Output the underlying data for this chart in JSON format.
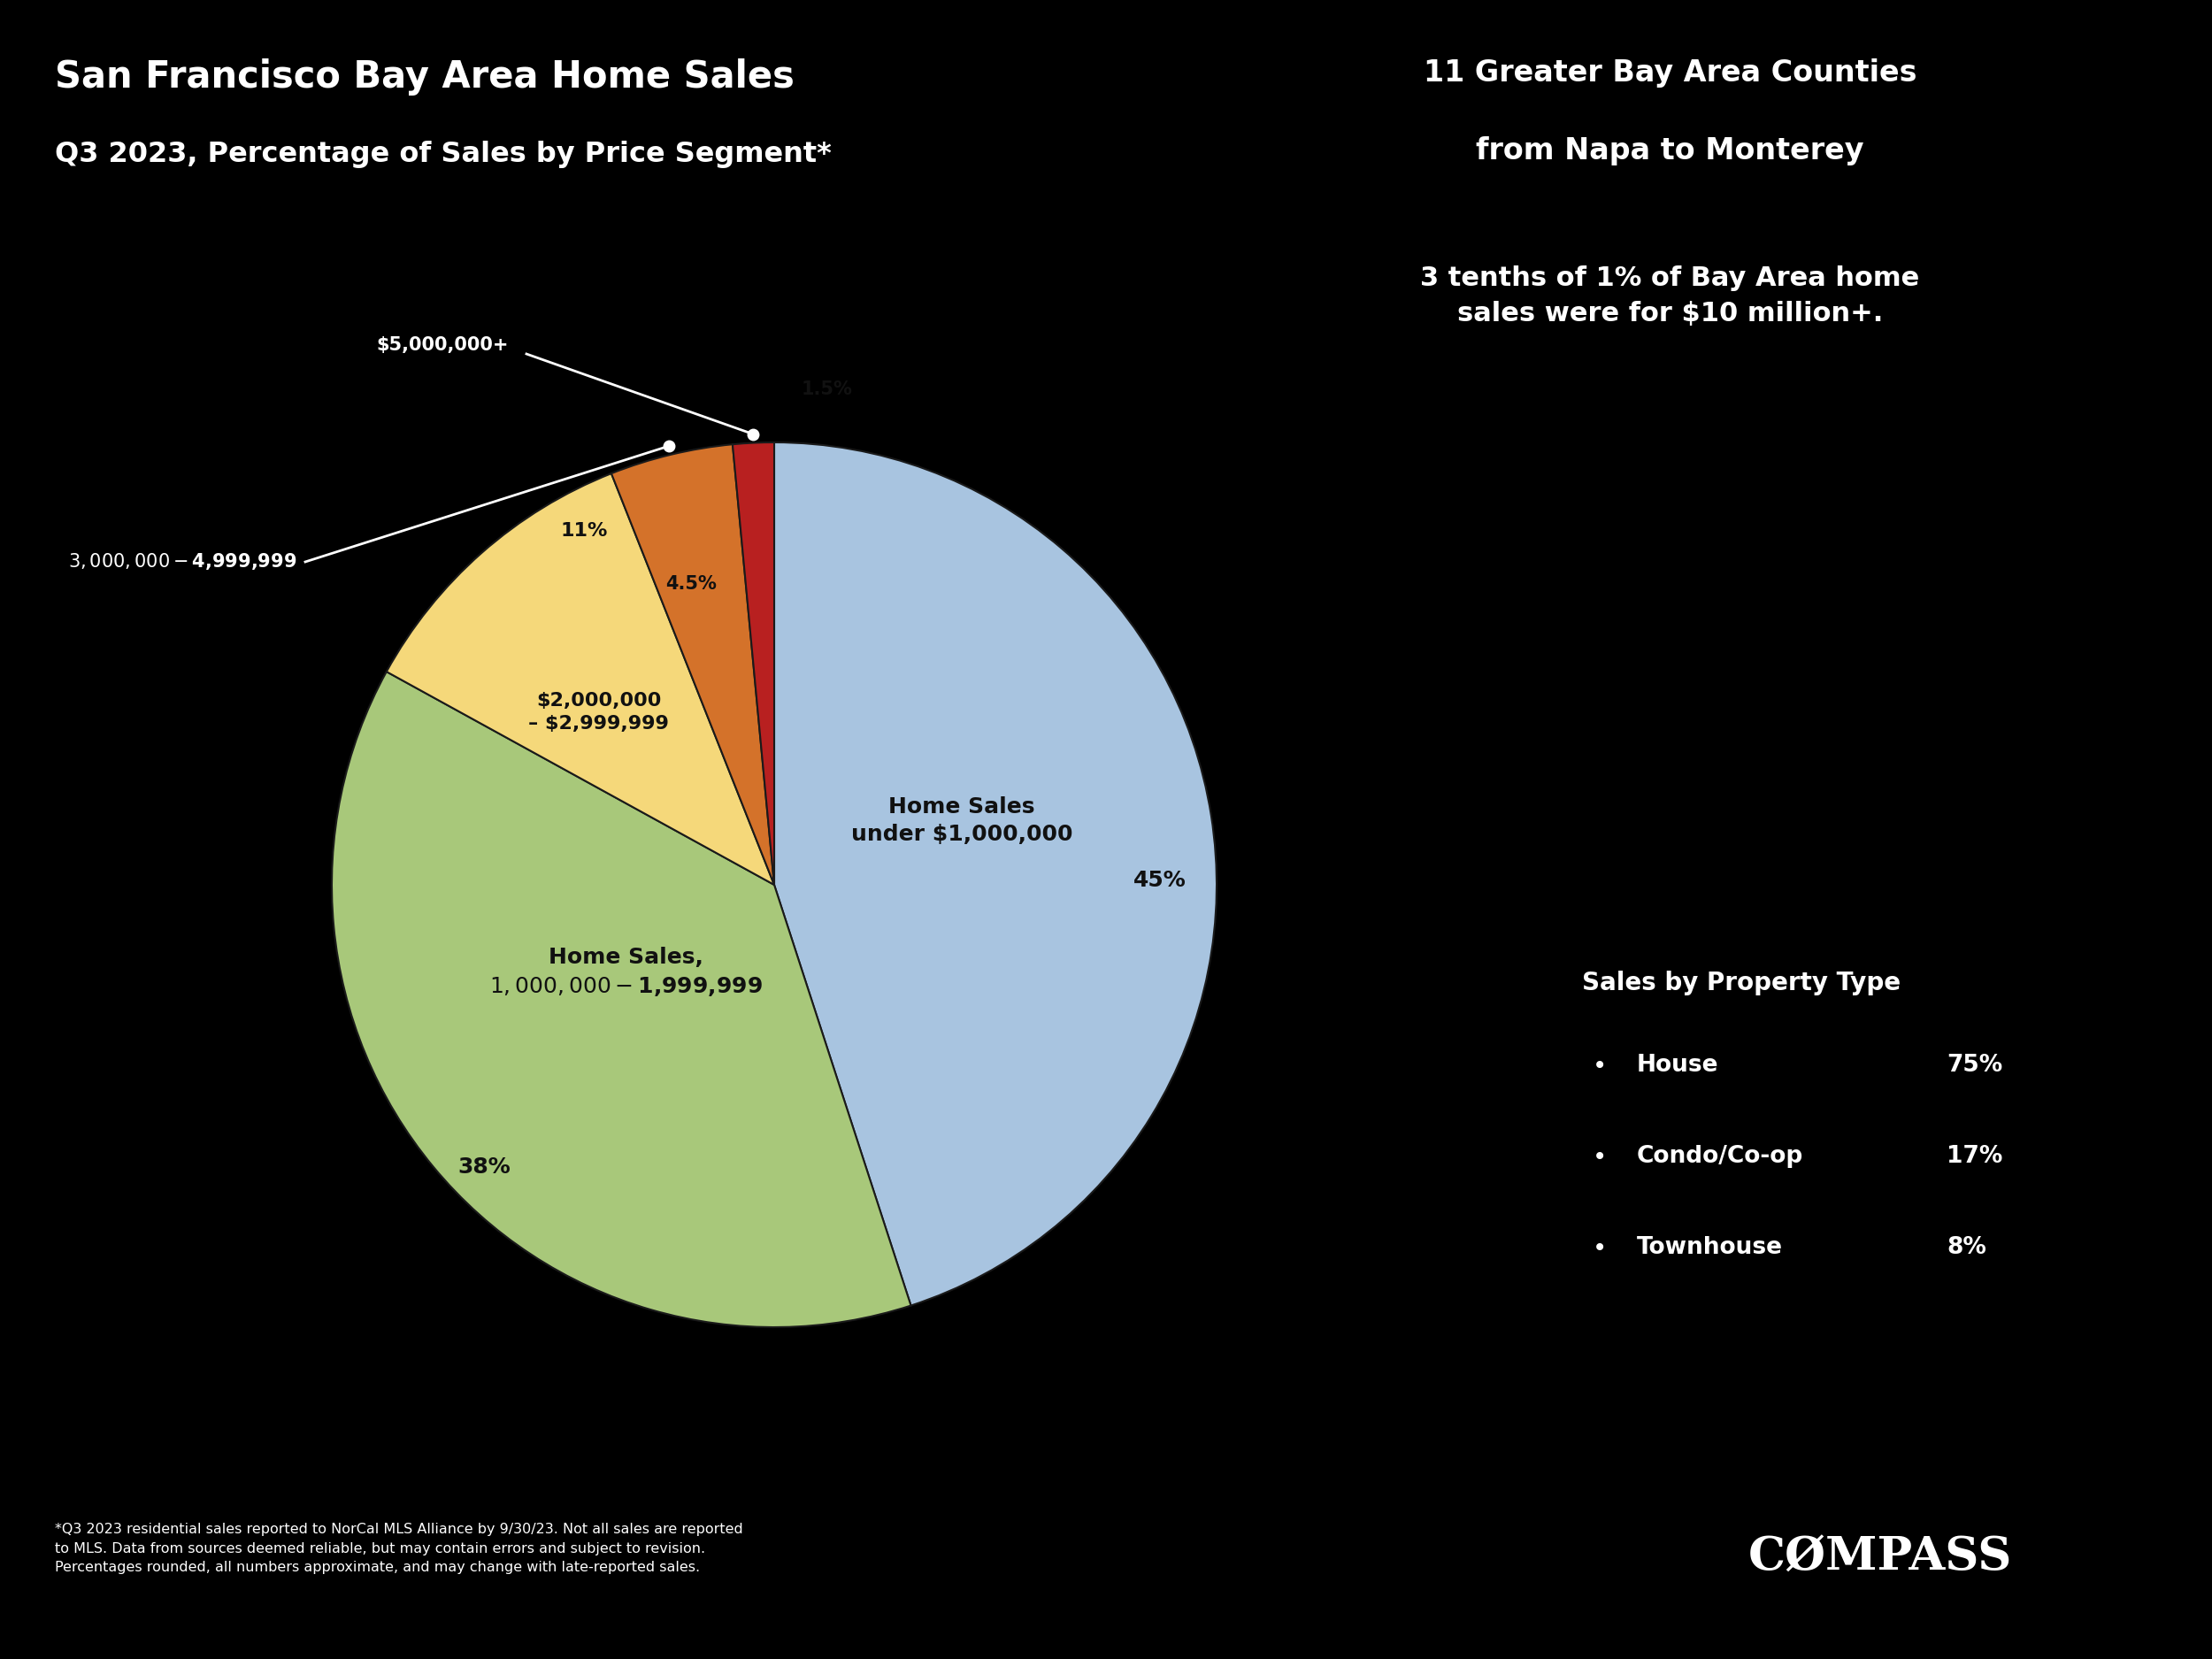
{
  "title_line1": "San Francisco Bay Area Home Sales",
  "title_line2": "Q3 2023, Percentage of Sales by Price Segment*",
  "subtitle_right_line1": "11 Greater Bay Area Counties",
  "subtitle_right_line2": "from Napa to Monterey",
  "annotation_top": "3 tenths of 1% of Bay Area home\nsales were for $10 million+.",
  "segments": [
    {
      "label": "Home Sales\nunder $1,000,000",
      "value": 45,
      "color": "#a8c4e0"
    },
    {
      "label": "Home Sales,\n$1,000,000 - $1,999,999",
      "value": 38,
      "color": "#a8c87a"
    },
    {
      "label": "$2,000,000\n– $2,999,999",
      "value": 11,
      "color": "#f5d87a"
    },
    {
      "label": "$3,000,000 - $4,999,999",
      "value": 4.5,
      "color": "#d4722a"
    },
    {
      "label": "$5,000,000+",
      "value": 1.5,
      "color": "#b82020"
    }
  ],
  "pct_labels": [
    "45%",
    "38%",
    "11%",
    "4.5%",
    "1.5%"
  ],
  "property_type_title": "Sales by Property Type",
  "property_types": [
    {
      "name": "House",
      "pct": "75%"
    },
    {
      "name": "Condo/Co-op",
      "pct": "17%"
    },
    {
      "name": "Townhouse",
      "pct": "8%"
    }
  ],
  "footnote_line1": "*Q3 2023 residential sales reported to NorCal MLS Alliance by 9/30/23. Not all sales are reported",
  "footnote_line2": "to MLS. Data from sources deemed reliable, but may contain errors and subject to revision.",
  "footnote_line3": "Percentages rounded, all numbers approximate, and may change with late-reported sales.",
  "compass_text": "CØMPASS",
  "background_color": "#000000",
  "text_color_white": "#ffffff",
  "text_color_dark": "#111111"
}
